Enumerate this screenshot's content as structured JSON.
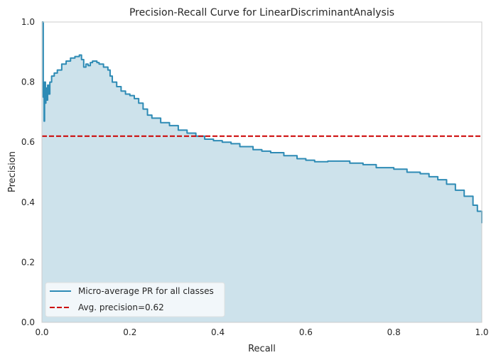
{
  "chart_data": {
    "type": "line",
    "title": "Precision-Recall Curve for LinearDiscriminantAnalysis",
    "xlabel": "Recall",
    "ylabel": "Precision",
    "xlim": [
      0.0,
      1.0
    ],
    "ylim": [
      0.0,
      1.0
    ],
    "xticks": [
      "0.0",
      "0.2",
      "0.4",
      "0.6",
      "0.8",
      "1.0"
    ],
    "yticks": [
      "0.0",
      "0.2",
      "0.4",
      "0.6",
      "0.8",
      "1.0"
    ],
    "grid": false,
    "legend_position": "lower-left",
    "colors": {
      "curve": "#2e8bb5",
      "fill": "#cde2eb",
      "avg_line": "#cc0000",
      "frame": "#cccccc"
    },
    "series": [
      {
        "name": "Micro-average PR for all classes",
        "style": "solid-with-fill",
        "x": [
          0.0,
          0.003,
          0.003,
          0.005,
          0.006,
          0.008,
          0.009,
          0.011,
          0.013,
          0.015,
          0.018,
          0.022,
          0.028,
          0.035,
          0.045,
          0.055,
          0.065,
          0.075,
          0.085,
          0.09,
          0.095,
          0.1,
          0.105,
          0.11,
          0.115,
          0.125,
          0.13,
          0.14,
          0.15,
          0.155,
          0.16,
          0.17,
          0.18,
          0.19,
          0.2,
          0.21,
          0.22,
          0.23,
          0.24,
          0.25,
          0.27,
          0.29,
          0.31,
          0.33,
          0.35,
          0.37,
          0.39,
          0.41,
          0.43,
          0.45,
          0.48,
          0.5,
          0.52,
          0.55,
          0.58,
          0.6,
          0.62,
          0.65,
          0.7,
          0.73,
          0.76,
          0.8,
          0.83,
          0.86,
          0.88,
          0.9,
          0.92,
          0.94,
          0.96,
          0.98,
          0.99,
          1.0
        ],
        "y": [
          1.0,
          1.0,
          0.75,
          0.67,
          0.8,
          0.73,
          0.78,
          0.74,
          0.79,
          0.76,
          0.8,
          0.82,
          0.83,
          0.84,
          0.86,
          0.87,
          0.88,
          0.885,
          0.89,
          0.875,
          0.85,
          0.86,
          0.855,
          0.865,
          0.87,
          0.865,
          0.86,
          0.85,
          0.84,
          0.82,
          0.8,
          0.785,
          0.77,
          0.76,
          0.755,
          0.745,
          0.73,
          0.71,
          0.69,
          0.68,
          0.665,
          0.655,
          0.64,
          0.63,
          0.62,
          0.61,
          0.605,
          0.6,
          0.595,
          0.585,
          0.575,
          0.57,
          0.565,
          0.555,
          0.545,
          0.54,
          0.535,
          0.537,
          0.53,
          0.525,
          0.515,
          0.51,
          0.5,
          0.495,
          0.485,
          0.475,
          0.46,
          0.44,
          0.42,
          0.39,
          0.37,
          0.33
        ]
      },
      {
        "name": "Avg. precision=0.62",
        "style": "dashed",
        "x": [
          0.0,
          1.0
        ],
        "y": [
          0.62,
          0.62
        ]
      }
    ]
  }
}
